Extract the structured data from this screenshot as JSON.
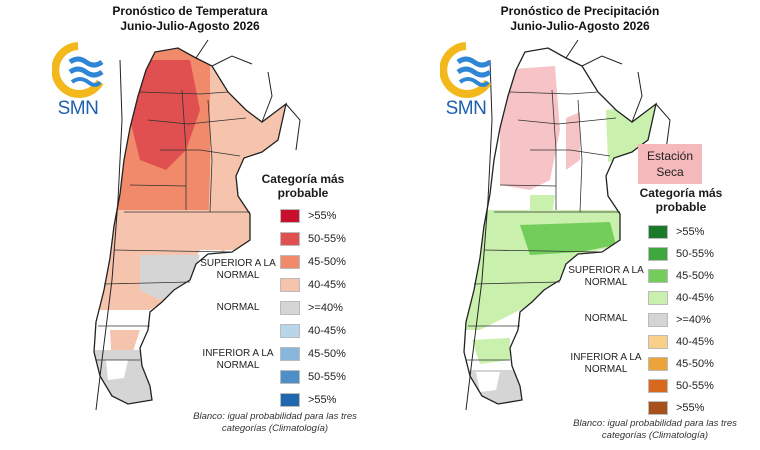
{
  "left_panel": {
    "title_line1": "Pronóstico de Temperatura",
    "title_line2": "Junio-Julio-Agosto 2026",
    "logo_text": "SMN",
    "legend_title": "Categoría más probable",
    "legend_items": [
      {
        "label": ">55%",
        "color": "#c8102e"
      },
      {
        "label": "50-55%",
        "color": "#e05050"
      },
      {
        "label": "45-50%",
        "color": "#f08a6a"
      },
      {
        "label": "40-45%",
        "color": "#f6c3ad"
      },
      {
        "label": ">=40%",
        "color": "#d5d5d5"
      },
      {
        "label": "40-45%",
        "color": "#b9d5ea"
      },
      {
        "label": "45-50%",
        "color": "#87b7dd"
      },
      {
        "label": "50-55%",
        "color": "#4f8fc8"
      },
      {
        "label": ">55%",
        "color": "#1f68b0"
      }
    ],
    "upper_label": "SUPERIOR A LA NORMAL",
    "normal_label": "NORMAL",
    "lower_label": "INFERIOR A LA NORMAL",
    "footnote": "Blanco: igual probabilidad para las tres categorías (Climatología)"
  },
  "right_panel": {
    "title_line1": "Pronóstico de Precipitación",
    "title_line2": "Junio-Julio-Agosto 2026",
    "logo_text": "SMN",
    "dry_station": "Estación Seca",
    "legend_title": "Categoría más probable",
    "legend_items": [
      {
        "label": ">55%",
        "color": "#1a7a2a"
      },
      {
        "label": "50-55%",
        "color": "#3ea83c"
      },
      {
        "label": "45-50%",
        "color": "#72cd5a"
      },
      {
        "label": "40-45%",
        "color": "#c9f0ad"
      },
      {
        "label": ">=40%",
        "color": "#d5d5d5"
      },
      {
        "label": "40-45%",
        "color": "#f8d08a"
      },
      {
        "label": "45-50%",
        "color": "#eda23a"
      },
      {
        "label": "50-55%",
        "color": "#d8681e"
      },
      {
        "label": ">55%",
        "color": "#a8501a"
      }
    ],
    "upper_label": "SUPERIOR A LA NORMAL",
    "normal_label": "NORMAL",
    "lower_label": "INFERIOR A LA NORMAL",
    "footnote": "Blanco: igual probabilidad para las tres categorías (Climatología)"
  },
  "colors": {
    "logo_yellow": "#f2b81c",
    "logo_blue": "#2e86d4",
    "map_outline": "#222222"
  }
}
